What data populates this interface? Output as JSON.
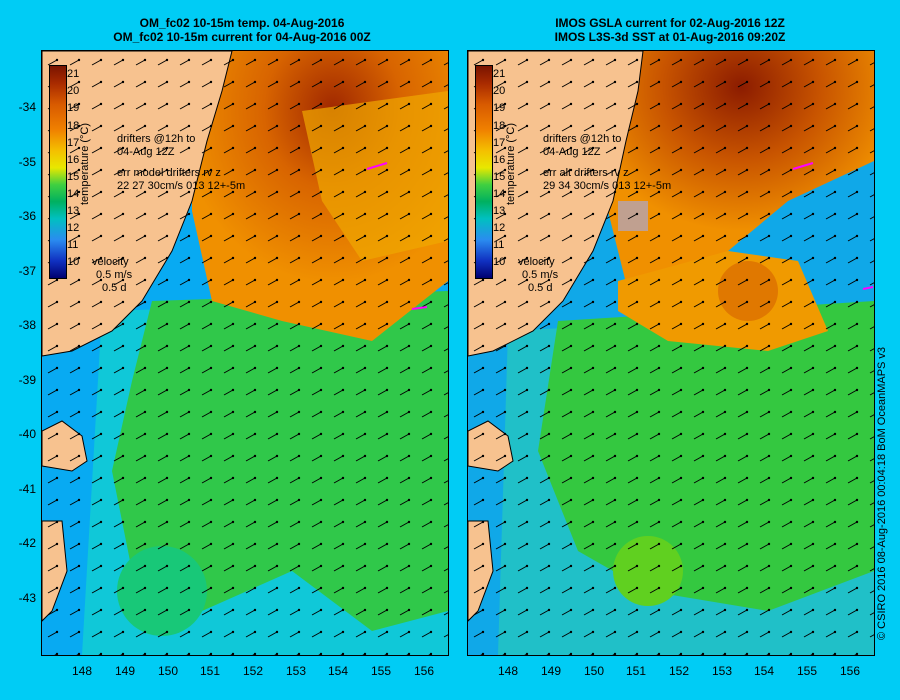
{
  "left_panel": {
    "title_line1": "OM_fc02 10-15m temp. 04-Aug-2016",
    "title_line2": "OM_fc02 10-15m current for 04-Aug-2016 00Z",
    "drifters_line1": "drifters @12h to",
    "drifters_line2": "04-Aug 12Z",
    "err_line1": "err model drifters rv z",
    "err_line2": "22 27 30cm/s 013 12+-5m",
    "velocity_label": "velocity",
    "velocity_scale": "0.5 m/s",
    "velocity_time": "0.5 d"
  },
  "right_panel": {
    "title_line1": "IMOS GSLA current for 02-Aug-2016 12Z",
    "title_line2": "IMOS L3S-3d SST at 01-Aug-2016 09:20Z",
    "drifters_line1": "drifters @12h to",
    "drifters_line2": "04-Aug 12Z",
    "err_line1": "err alt drifters rv z",
    "err_line2": "29 34 30cm/s 013 12+-5m",
    "velocity_label": "velocity",
    "velocity_scale": "0.5 m/s",
    "velocity_time": "0.5 d"
  },
  "colorbar": {
    "label": "temperature (°C)",
    "ticks": [
      "21",
      "20",
      "19",
      "18",
      "17",
      "16",
      "15",
      "14",
      "13",
      "12",
      "11",
      "10"
    ]
  },
  "axes": {
    "lat_ticks": [
      "-34",
      "-35",
      "-36",
      "-37",
      "-38",
      "-39",
      "-40",
      "-41",
      "-42",
      "-43"
    ],
    "lon_ticks": [
      "148",
      "149",
      "150",
      "151",
      "152",
      "153",
      "154",
      "155",
      "156"
    ]
  },
  "credit": "© CSIRO 2016   08-Aug-2016 00:04:18 BoM OceanMAPS v3",
  "colors": {
    "background": "#00ccf5",
    "land": "#f7c28f",
    "drifter_track": "#ff00ff"
  }
}
